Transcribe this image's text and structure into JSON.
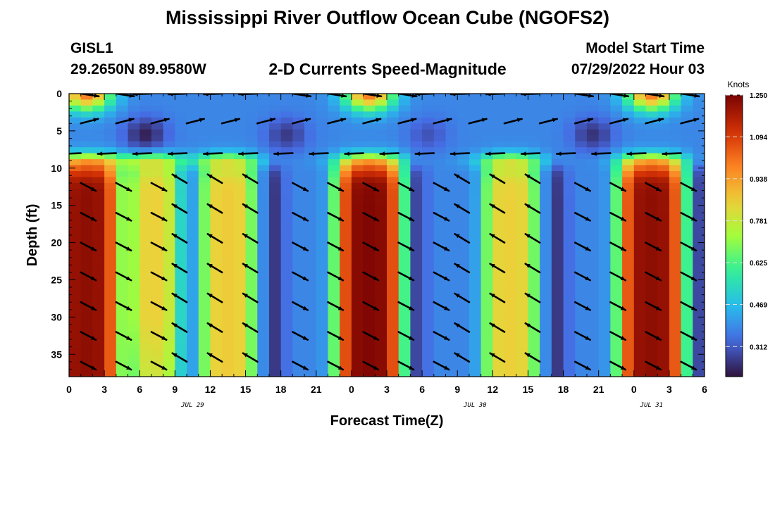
{
  "header": {
    "title": "Mississippi River Outflow Ocean Cube (NGOFS2)",
    "station_name": "GISL1",
    "station_coords": "29.2650N  89.9580W",
    "subtitle": "2-D Currents Speed-Magnitude",
    "model_start_label": "Model Start Time",
    "model_start_value": "07/29/2022 Hour 03"
  },
  "footer": {
    "title": "Mississippi River Outflow Ocean Cube (NGOFS2)"
  },
  "chart_data": {
    "type": "heatmap",
    "title": "2-D Currents Speed-Magnitude",
    "xlabel": "Forecast Time(Z)",
    "ylabel": "Depth (ft)",
    "x_tick_labels": [
      "0",
      "3",
      "6",
      "9",
      "12",
      "15",
      "18",
      "21",
      "0",
      "3",
      "6",
      "9",
      "12",
      "15",
      "18",
      "21",
      "0",
      "3",
      "6"
    ],
    "x_hours": [
      0,
      3,
      6,
      9,
      12,
      15,
      18,
      21,
      24,
      27,
      30,
      33,
      36,
      39,
      42,
      45,
      48,
      51,
      54
    ],
    "x_range": [
      0,
      54
    ],
    "date_labels": [
      {
        "hour": 10.5,
        "text": "JUL 29"
      },
      {
        "hour": 34.5,
        "text": "JUL 30"
      },
      {
        "hour": 49.5,
        "text": "JUL 31"
      }
    ],
    "y_tick_labels": [
      "0",
      "5",
      "10",
      "15",
      "20",
      "25",
      "30",
      "35"
    ],
    "y_values": [
      0,
      5,
      10,
      15,
      20,
      25,
      30,
      35
    ],
    "y_range": [
      0,
      38
    ],
    "y_inverted": true,
    "colorbar": {
      "unit": "Knots",
      "min": 0.2,
      "max": 1.25,
      "tick_labels": [
        "1.250",
        "1.094",
        "0.938",
        "0.781",
        "0.625",
        "0.469",
        "0.312"
      ],
      "tick_values": [
        1.25,
        1.094,
        0.938,
        0.781,
        0.625,
        0.469,
        0.312
      ],
      "colormap": "turbo"
    },
    "vector_levels_ft": [
      0,
      4,
      8,
      12,
      16,
      20,
      24,
      28,
      32,
      36
    ],
    "vector_times_h": [
      1,
      4,
      7,
      10,
      13,
      16,
      19,
      22,
      25,
      28,
      31,
      34,
      37,
      40,
      43,
      46,
      49,
      52
    ]
  }
}
